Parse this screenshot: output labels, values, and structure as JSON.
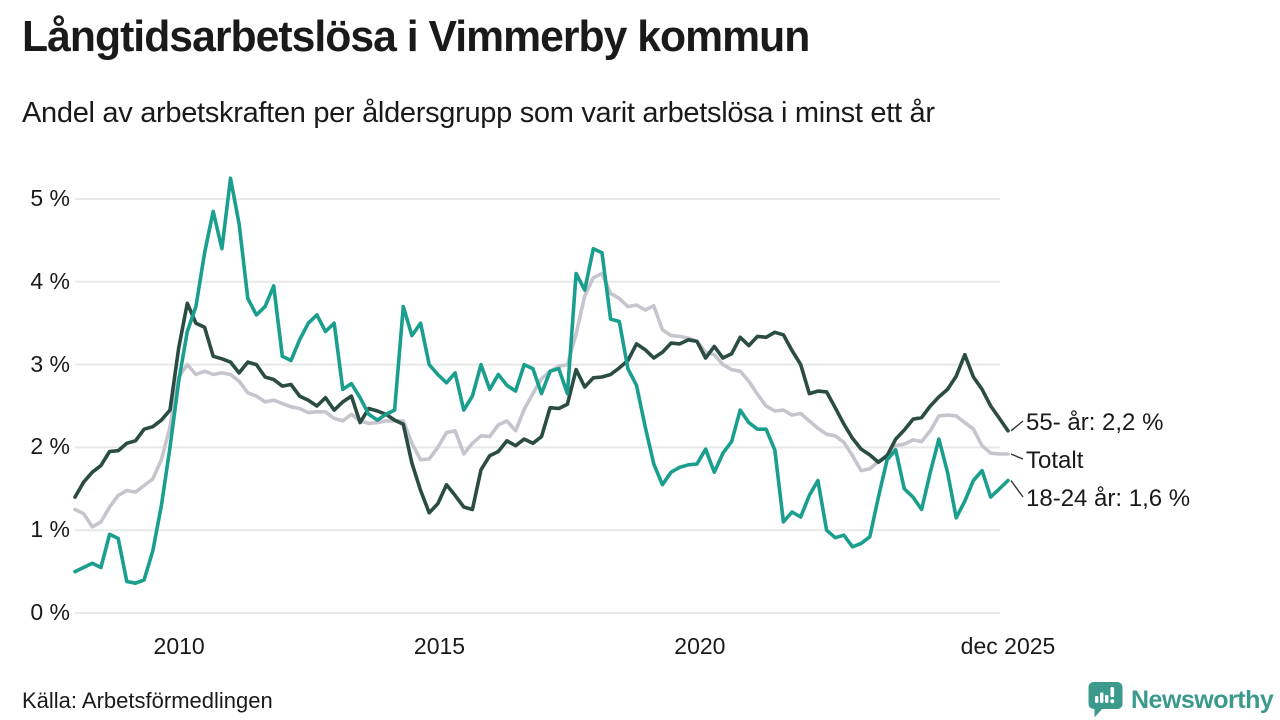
{
  "header": {
    "title": "Långtidsarbetslösa i Vimmerby kommun",
    "subtitle": "Andel av arbetskraften per åldersgrupp som varit arbetslösa i minst ett år"
  },
  "footer": {
    "source": "Källa: Arbetsförmedlingen",
    "brand": "Newsworthy"
  },
  "colors": {
    "teal_series": "#1a9e8d",
    "dark_green_series": "#2b4c43",
    "gray_series": "#c6c5ce",
    "gridline": "#e8e8e8",
    "text": "#1a1a1a",
    "brand_teal": "#3c9a8c",
    "leader_line": "#333333"
  },
  "chart_data": {
    "type": "line",
    "title": "Långtidsarbetslösa i Vimmerby kommun",
    "subtitle": "Andel av arbetskraften per åldersgrupp som varit arbetslösa i minst ett år",
    "source": "Källa: Arbetsförmedlingen",
    "xlabel": "",
    "ylabel": "",
    "grid": "horizontal",
    "x_start_year": 2008.0,
    "x_end_year": 2025.917,
    "interval_months": 2,
    "ylim": [
      0,
      5.5
    ],
    "x_axis": {
      "ticks": [
        {
          "label": "2010",
          "year": 2010
        },
        {
          "label": "2015",
          "year": 2015
        },
        {
          "label": "2020",
          "year": 2020
        },
        {
          "label": "dec 2025",
          "year": 2025.917
        }
      ]
    },
    "y_axis": {
      "ticks": [
        {
          "label": "0 %",
          "value": 0
        },
        {
          "label": "1 %",
          "value": 1
        },
        {
          "label": "2 %",
          "value": 2
        },
        {
          "label": "3 %",
          "value": 3
        },
        {
          "label": "4 %",
          "value": 4
        },
        {
          "label": "5 %",
          "value": 5
        }
      ]
    },
    "annotations": [
      {
        "text": "55- år: 2,2 %",
        "series": "55"
      },
      {
        "text": "Totalt",
        "series": "totalt"
      },
      {
        "text": "18-24 år: 1,6 %",
        "series": "18-24"
      }
    ],
    "series": [
      {
        "id": "totalt",
        "name": "Totalt",
        "color": "#c6c5ce",
        "end_value": 1.9,
        "values": [
          1.25,
          1.2,
          1.04,
          1.1,
          1.28,
          1.42,
          1.48,
          1.46,
          1.54,
          1.62,
          1.85,
          2.25,
          2.85,
          3.0,
          2.88,
          2.92,
          2.88,
          2.9,
          2.88,
          2.8,
          2.66,
          2.62,
          2.55,
          2.57,
          2.53,
          2.49,
          2.47,
          2.42,
          2.43,
          2.43,
          2.35,
          2.32,
          2.4,
          2.32,
          2.29,
          2.3,
          2.32,
          2.32,
          2.32,
          2.05,
          1.85,
          1.86,
          2.0,
          2.18,
          2.2,
          1.92,
          2.05,
          2.14,
          2.13,
          2.27,
          2.32,
          2.2,
          2.46,
          2.65,
          2.83,
          2.92,
          2.98,
          3.0,
          3.37,
          3.83,
          4.05,
          4.1,
          3.86,
          3.8,
          3.7,
          3.72,
          3.66,
          3.71,
          3.42,
          3.35,
          3.34,
          3.32,
          3.28,
          3.15,
          3.12,
          3.0,
          2.94,
          2.92,
          2.8,
          2.64,
          2.5,
          2.44,
          2.45,
          2.39,
          2.41,
          2.32,
          2.23,
          2.16,
          2.14,
          2.06,
          1.9,
          1.72,
          1.74,
          1.83,
          1.91,
          2.02,
          2.04,
          2.09,
          2.07,
          2.2,
          2.38,
          2.39,
          2.38,
          2.3,
          2.22,
          2.02,
          1.93,
          1.92,
          1.92
        ]
      },
      {
        "id": "55",
        "name": "55- år",
        "color": "#2b4c43",
        "end_value": 2.2,
        "values": [
          1.4,
          1.58,
          1.7,
          1.78,
          1.95,
          1.96,
          2.05,
          2.08,
          2.22,
          2.25,
          2.33,
          2.45,
          3.2,
          3.74,
          3.5,
          3.45,
          3.1,
          3.07,
          3.03,
          2.9,
          3.03,
          3.0,
          2.85,
          2.82,
          2.74,
          2.76,
          2.62,
          2.57,
          2.5,
          2.6,
          2.45,
          2.55,
          2.62,
          2.3,
          2.47,
          2.44,
          2.4,
          2.33,
          2.28,
          1.81,
          1.48,
          1.21,
          1.32,
          1.55,
          1.42,
          1.28,
          1.25,
          1.73,
          1.9,
          1.95,
          2.08,
          2.02,
          2.1,
          2.05,
          2.13,
          2.48,
          2.47,
          2.52,
          2.94,
          2.73,
          2.84,
          2.85,
          2.88,
          2.96,
          3.05,
          3.25,
          3.18,
          3.08,
          3.15,
          3.26,
          3.25,
          3.3,
          3.28,
          3.08,
          3.22,
          3.08,
          3.13,
          3.33,
          3.23,
          3.34,
          3.33,
          3.39,
          3.36,
          3.17,
          3.0,
          2.65,
          2.68,
          2.67,
          2.48,
          2.28,
          2.11,
          1.98,
          1.91,
          1.82,
          1.9,
          2.1,
          2.21,
          2.34,
          2.36,
          2.5,
          2.61,
          2.7,
          2.86,
          3.12,
          2.85,
          2.7,
          2.5,
          2.35,
          2.2
        ]
      },
      {
        "id": "18-24",
        "name": "18-24 år",
        "color": "#1a9e8d",
        "end_value": 1.6,
        "values": [
          0.5,
          0.55,
          0.6,
          0.55,
          0.95,
          0.9,
          0.38,
          0.36,
          0.4,
          0.75,
          1.3,
          2.0,
          2.8,
          3.4,
          3.7,
          4.35,
          4.85,
          4.4,
          5.25,
          4.7,
          3.8,
          3.6,
          3.7,
          3.95,
          3.1,
          3.05,
          3.3,
          3.5,
          3.6,
          3.4,
          3.5,
          2.7,
          2.77,
          2.6,
          2.4,
          2.33,
          2.4,
          2.45,
          3.7,
          3.35,
          3.5,
          3.0,
          2.88,
          2.78,
          2.9,
          2.45,
          2.62,
          3.0,
          2.7,
          2.88,
          2.75,
          2.68,
          3.0,
          2.95,
          2.65,
          2.92,
          2.95,
          2.65,
          4.1,
          3.9,
          4.4,
          4.35,
          3.55,
          3.52,
          2.95,
          2.75,
          2.25,
          1.8,
          1.55,
          1.7,
          1.76,
          1.79,
          1.8,
          1.98,
          1.7,
          1.93,
          2.07,
          2.45,
          2.3,
          2.22,
          2.22,
          1.97,
          1.1,
          1.22,
          1.16,
          1.42,
          1.6,
          1.0,
          0.91,
          0.94,
          0.8,
          0.84,
          0.92,
          1.4,
          1.85,
          1.97,
          1.5,
          1.4,
          1.25,
          1.7,
          2.1,
          1.7,
          1.15,
          1.35,
          1.6,
          1.72,
          1.4,
          1.5,
          1.6
        ]
      }
    ]
  }
}
